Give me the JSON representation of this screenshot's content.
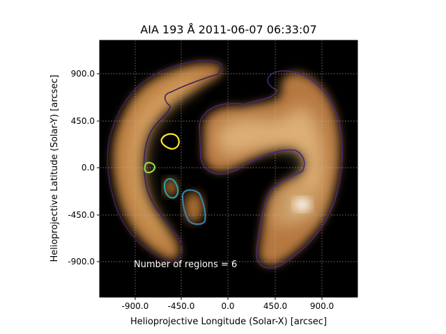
{
  "chart_data": {
    "type": "heatmap",
    "title": "AIA 193 Å 2011-06-07 06:33:07",
    "xlabel": "Helioprojective Longitude (Solar-X) [arcsec]",
    "ylabel": "Helioprojective Latitude (Solar-Y) [arcsec]",
    "xlim": [
      -1230,
      1230
    ],
    "ylim": [
      -1230,
      1230
    ],
    "x_ticks": [
      "-900.0",
      "-450.0",
      "0.0",
      "450.0",
      "900.0"
    ],
    "y_ticks": [
      "900.0",
      "450.0",
      "0.0",
      "-450.0",
      "-900.0"
    ],
    "grid": true,
    "colormap": "sdoaia193",
    "contour_colors": [
      "#3b1f63",
      "#482878",
      "#95d840",
      "#fde725",
      "#21a3a3",
      "#3b80a8"
    ],
    "annotation": "Number of regions = 6"
  }
}
